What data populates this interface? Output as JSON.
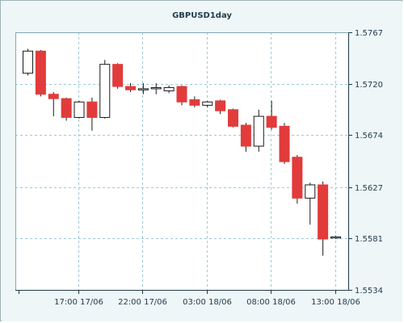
{
  "chart_data": {
    "type": "candlestick",
    "title": "GBPUSD1day",
    "y_ticks": [
      "1.5767",
      "1.5720",
      "1.5674",
      "1.5627",
      "1.5581",
      "1.5534"
    ],
    "ylim": [
      1.5534,
      1.5767
    ],
    "x_ticks": [
      "17:00 17/06",
      "22:00 17/06",
      "03:00 18/06",
      "08:00 18/06",
      "13:00 18/06"
    ],
    "grid": true,
    "colors": {
      "up": "#ffffff",
      "down": "#e23b3b",
      "outline": "#1a1a1a",
      "grid": "#9dc9d3",
      "plot_bg": "#ffffff",
      "frame_bg": "#eef6f7"
    },
    "candles": [
      {
        "o": 1.573,
        "h": 1.5752,
        "l": 1.5728,
        "c": 1.575
      },
      {
        "o": 1.575,
        "h": 1.5751,
        "l": 1.5709,
        "c": 1.5711
      },
      {
        "o": 1.5711,
        "h": 1.5713,
        "l": 1.5691,
        "c": 1.5707
      },
      {
        "o": 1.5707,
        "h": 1.5708,
        "l": 1.5687,
        "c": 1.569
      },
      {
        "o": 1.569,
        "h": 1.5705,
        "l": 1.5689,
        "c": 1.5704
      },
      {
        "o": 1.5704,
        "h": 1.5708,
        "l": 1.5678,
        "c": 1.569
      },
      {
        "o": 1.569,
        "h": 1.5742,
        "l": 1.5689,
        "c": 1.5738
      },
      {
        "o": 1.5738,
        "h": 1.5739,
        "l": 1.5716,
        "c": 1.5718
      },
      {
        "o": 1.5718,
        "h": 1.5721,
        "l": 1.5713,
        "c": 1.5715
      },
      {
        "o": 1.5716,
        "h": 1.5721,
        "l": 1.5711,
        "c": 1.5716
      },
      {
        "o": 1.5716,
        "h": 1.5721,
        "l": 1.5711,
        "c": 1.5717
      },
      {
        "o": 1.5714,
        "h": 1.5719,
        "l": 1.5712,
        "c": 1.5717
      },
      {
        "o": 1.5718,
        "h": 1.5719,
        "l": 1.5701,
        "c": 1.5704
      },
      {
        "o": 1.5706,
        "h": 1.5709,
        "l": 1.5699,
        "c": 1.5701
      },
      {
        "o": 1.5701,
        "h": 1.5705,
        "l": 1.5699,
        "c": 1.5704
      },
      {
        "o": 1.5705,
        "h": 1.5706,
        "l": 1.5693,
        "c": 1.5696
      },
      {
        "o": 1.5697,
        "h": 1.5698,
        "l": 1.5681,
        "c": 1.5682
      },
      {
        "o": 1.5683,
        "h": 1.5685,
        "l": 1.5659,
        "c": 1.5664
      },
      {
        "o": 1.5664,
        "h": 1.5697,
        "l": 1.5659,
        "c": 1.5691
      },
      {
        "o": 1.5691,
        "h": 1.5705,
        "l": 1.5679,
        "c": 1.5681
      },
      {
        "o": 1.5682,
        "h": 1.5685,
        "l": 1.5648,
        "c": 1.565
      },
      {
        "o": 1.5654,
        "h": 1.5656,
        "l": 1.5612,
        "c": 1.5617
      },
      {
        "o": 1.5617,
        "h": 1.5631,
        "l": 1.5593,
        "c": 1.5629
      },
      {
        "o": 1.5629,
        "h": 1.5632,
        "l": 1.5565,
        "c": 1.558
      },
      {
        "o": 1.5582,
        "h": 1.5583,
        "l": 1.558,
        "c": 1.5582
      }
    ]
  }
}
